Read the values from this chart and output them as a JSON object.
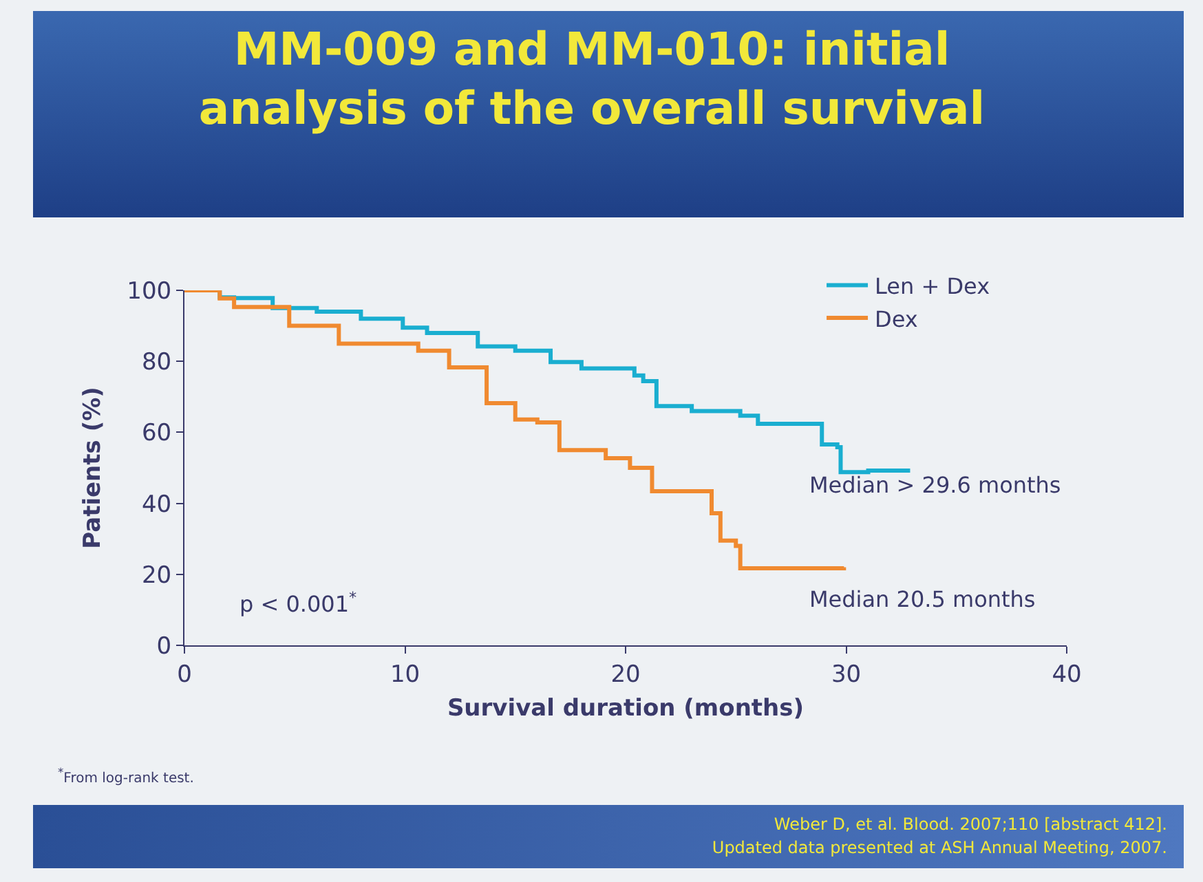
{
  "chart_data": {
    "type": "step",
    "title": "MM-009 and MM-010: initial analysis of the overall survival",
    "xlabel": "Survival duration (months)",
    "ylabel": "Patients (%)",
    "xlim": [
      0,
      40
    ],
    "xticks": [
      0,
      10,
      20,
      30,
      40
    ],
    "ylim": [
      0,
      100
    ],
    "yticks": [
      0,
      20,
      40,
      60,
      80,
      100
    ],
    "legend": "top right",
    "marker": "none",
    "line_style": "solid",
    "series": [
      {
        "name": "Len + Dex",
        "color": "#1aaed0",
        "x": [
          0,
          1.6,
          2.25,
          4,
          6,
          8,
          9.9,
          11,
          13.3,
          15,
          16.6,
          18,
          20.4,
          20.8,
          21.4,
          23,
          25.2,
          26,
          28.7,
          28.9,
          29.6,
          29.75,
          31,
          32.9
        ],
        "values": [
          100,
          98,
          97.8,
          95,
          94,
          92,
          89.5,
          88,
          84.2,
          83,
          79.8,
          78,
          76,
          74.4,
          67.4,
          66,
          64.7,
          62.4,
          62.4,
          56.6,
          55.8,
          48.8,
          49.2,
          49.2
        ]
      },
      {
        "name": "Dex",
        "color": "#f08a30",
        "x": [
          0,
          0.4,
          1.6,
          2.25,
          4.75,
          7,
          10.6,
          12,
          13.7,
          15,
          16,
          17,
          19.1,
          20.2,
          21.2,
          23.3,
          23.9,
          24.3,
          25,
          25.2,
          29.9
        ],
        "values": [
          100,
          100,
          97.7,
          95.3,
          90,
          85,
          83,
          78.3,
          68.2,
          63.6,
          62.8,
          55,
          52.7,
          50,
          43.4,
          43.4,
          37.2,
          29.5,
          28,
          21.7,
          22
        ]
      }
    ],
    "annotations": [
      "p < 0.001$^{*}$",
      "Median > 29.6 months",
      "Median 20.5 months",
      "$^{*}$From log-rank test.",
      "Weber D, et al. Blood. 2007;110 [abstract 412].",
      "Updated data presented at ASH Annual Meeting, 2007."
    ]
  }
}
